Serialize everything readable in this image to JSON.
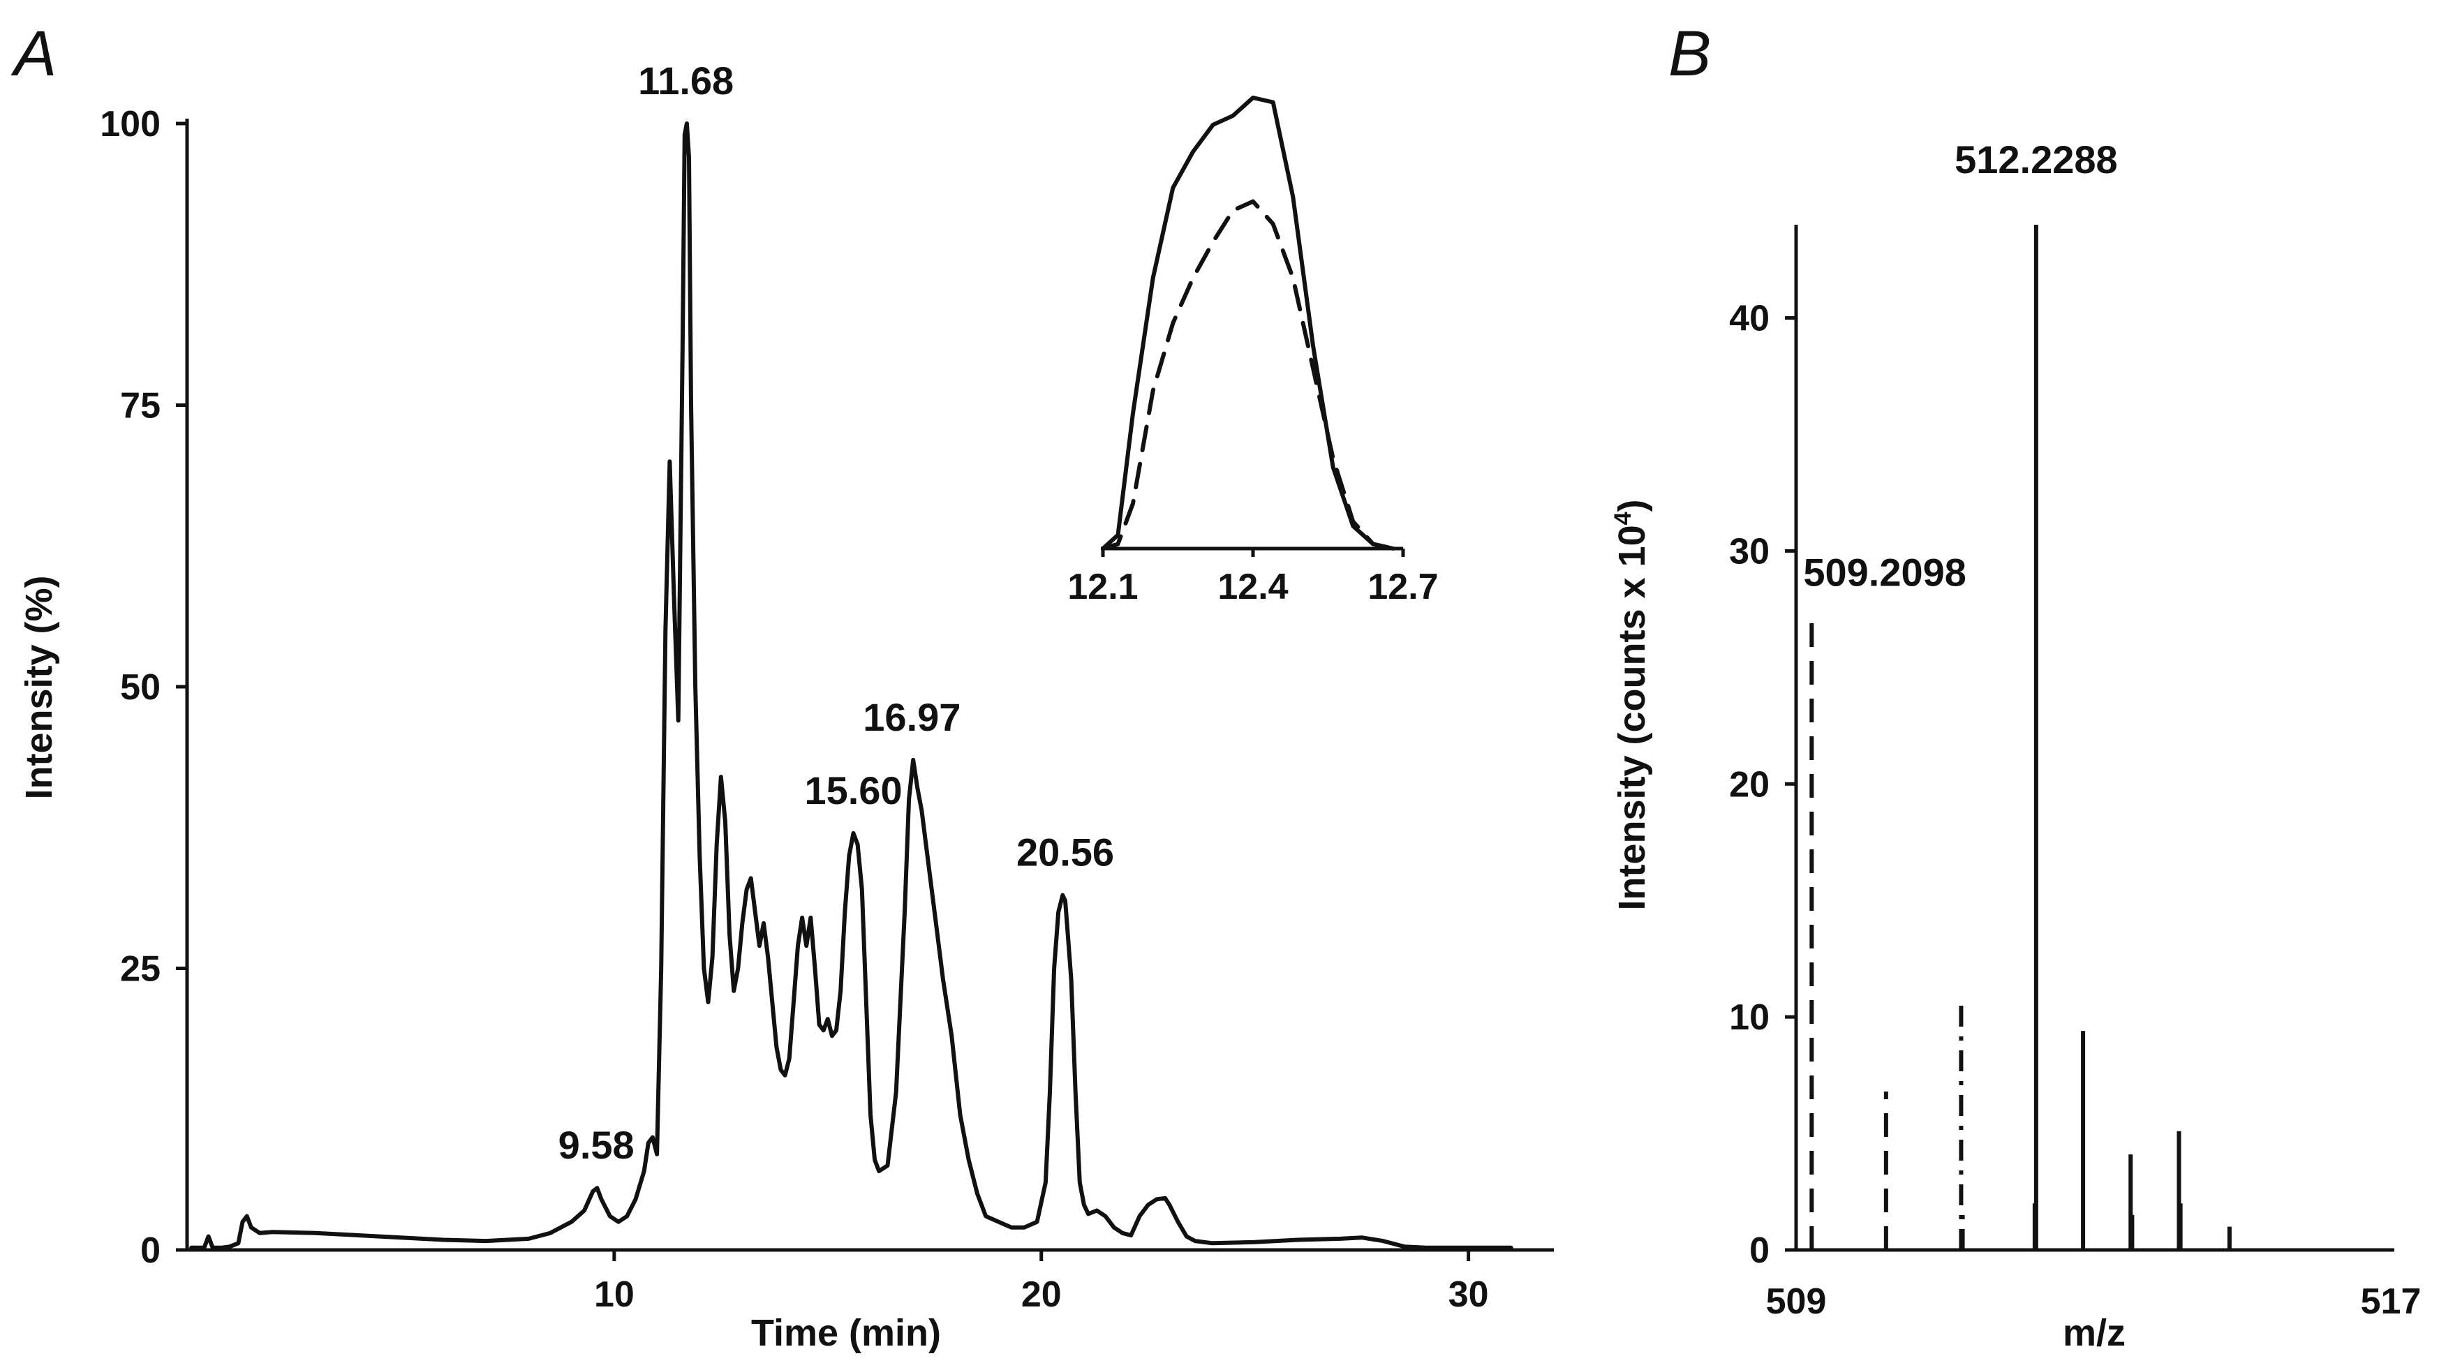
{
  "chart_data": [
    {
      "panel": "A",
      "type": "line",
      "xlabel": "Time (min)",
      "ylabel": "Intensity (%)",
      "xlim": [
        0,
        32
      ],
      "ylim": [
        0,
        100
      ],
      "x_ticks": [
        10,
        20,
        30
      ],
      "y_ticks": [
        0,
        25,
        50,
        75,
        100
      ],
      "x_tick_labels": [
        "10",
        "20",
        "30"
      ],
      "y_tick_labels": [
        "0",
        "25",
        "50",
        "75",
        "100"
      ],
      "peak_labels": [
        {
          "x": 9.58,
          "y": 5.5,
          "text": "9.58"
        },
        {
          "x": 11.68,
          "y": 100,
          "text": "11.68"
        },
        {
          "x": 15.6,
          "y": 37,
          "text": "15.60"
        },
        {
          "x": 16.97,
          "y": 43.5,
          "text": "16.97"
        },
        {
          "x": 20.56,
          "y": 31.5,
          "text": "20.56"
        }
      ],
      "series": [
        {
          "name": "chromatogram",
          "x": [
            0.1,
            0.4,
            0.5,
            0.6,
            0.8,
            1.0,
            1.2,
            1.3,
            1.4,
            1.5,
            1.7,
            2.0,
            3.0,
            4.0,
            5.0,
            6.0,
            7.0,
            8.0,
            8.5,
            9.0,
            9.3,
            9.5,
            9.6,
            9.7,
            9.9,
            10.1,
            10.3,
            10.5,
            10.7,
            10.8,
            10.9,
            11.0,
            11.1,
            11.2,
            11.3,
            11.4,
            11.5,
            11.6,
            11.65,
            11.7,
            11.75,
            11.8,
            11.9,
            12.0,
            12.1,
            12.2,
            12.3,
            12.4,
            12.5,
            12.6,
            12.7,
            12.8,
            12.9,
            13.0,
            13.1,
            13.2,
            13.3,
            13.4,
            13.5,
            13.6,
            13.7,
            13.8,
            13.9,
            14.0,
            14.1,
            14.2,
            14.3,
            14.4,
            14.5,
            14.6,
            14.7,
            14.8,
            14.9,
            15.0,
            15.1,
            15.2,
            15.3,
            15.4,
            15.5,
            15.6,
            15.7,
            15.8,
            15.9,
            16.0,
            16.1,
            16.2,
            16.4,
            16.6,
            16.8,
            16.9,
            17.0,
            17.1,
            17.2,
            17.3,
            17.5,
            17.7,
            17.9,
            18.1,
            18.3,
            18.5,
            18.7,
            19.0,
            19.3,
            19.6,
            19.9,
            20.1,
            20.2,
            20.3,
            20.4,
            20.5,
            20.56,
            20.6,
            20.7,
            20.8,
            20.9,
            21.0,
            21.1,
            21.3,
            21.5,
            21.7,
            21.9,
            22.1,
            22.3,
            22.5,
            22.7,
            22.9,
            23.0,
            23.2,
            23.4,
            23.6,
            24.0,
            25.0,
            26.0,
            27.0,
            27.5,
            28.0,
            28.5,
            29.0,
            30.0,
            31.0
          ],
          "y": [
            0.2,
            0.2,
            1.2,
            0.2,
            0.2,
            0.3,
            0.6,
            2.5,
            3.0,
            2.0,
            1.5,
            1.6,
            1.5,
            1.3,
            1.1,
            0.9,
            0.8,
            1.0,
            1.5,
            2.5,
            3.5,
            5.2,
            5.5,
            4.5,
            3.0,
            2.5,
            3.0,
            4.5,
            7.0,
            9.5,
            10.0,
            8.5,
            25.0,
            55.0,
            70.0,
            58.0,
            47.0,
            80.0,
            99.0,
            100.0,
            97.0,
            75.0,
            50.0,
            35.0,
            25.0,
            22.0,
            26.0,
            36.0,
            42.0,
            38.0,
            28.0,
            23.0,
            25.0,
            29.0,
            32.0,
            33.0,
            30.0,
            27.0,
            29.0,
            26.0,
            22.0,
            18.0,
            16.0,
            15.5,
            17.0,
            22.0,
            27.0,
            29.5,
            27.0,
            29.5,
            25.0,
            20.0,
            19.5,
            20.5,
            19.0,
            19.5,
            23.0,
            30.0,
            35.0,
            37.0,
            36.0,
            32.0,
            22.0,
            12.0,
            8.0,
            7.0,
            7.5,
            14.0,
            30.0,
            40.0,
            43.5,
            41.0,
            39.0,
            36.0,
            30.0,
            24.0,
            19.0,
            12.0,
            8.0,
            5.0,
            3.0,
            2.5,
            2.0,
            2.0,
            2.5,
            6.0,
            14.0,
            25.0,
            30.0,
            31.5,
            31.0,
            29.0,
            24.0,
            14.0,
            6.0,
            4.0,
            3.2,
            3.5,
            3.0,
            2.0,
            1.5,
            1.3,
            3.0,
            4.0,
            4.5,
            4.6,
            4.0,
            2.5,
            1.2,
            0.8,
            0.6,
            0.7,
            0.9,
            1.0,
            1.1,
            0.8,
            0.3,
            0.2,
            0.2,
            0.2
          ]
        }
      ]
    },
    {
      "panel": "A-inset",
      "type": "line",
      "xlabel": "",
      "ylabel": "",
      "xlim": [
        12.1,
        12.7
      ],
      "ylim": [
        0,
        100
      ],
      "x_ticks": [
        12.1,
        12.4,
        12.7
      ],
      "x_tick_labels": [
        "12.1",
        "12.4",
        "12.7"
      ],
      "series": [
        {
          "name": "solid",
          "style": "solid",
          "x": [
            12.1,
            12.13,
            12.16,
            12.2,
            12.24,
            12.28,
            12.32,
            12.36,
            12.4,
            12.44,
            12.48,
            12.52,
            12.56,
            12.6,
            12.64,
            12.68
          ],
          "y": [
            0,
            3,
            30,
            60,
            80,
            88,
            94,
            96,
            100,
            99,
            78,
            45,
            18,
            5,
            1,
            0
          ]
        },
        {
          "name": "dashed",
          "style": "dashed",
          "x": [
            12.1,
            12.13,
            12.16,
            12.2,
            12.24,
            12.28,
            12.32,
            12.36,
            12.4,
            12.44,
            12.48,
            12.52,
            12.56,
            12.6,
            12.64,
            12.68
          ],
          "y": [
            0,
            1,
            10,
            35,
            50,
            60,
            68,
            75,
            77,
            72,
            60,
            40,
            20,
            6,
            1,
            0
          ]
        }
      ]
    },
    {
      "panel": "B",
      "type": "bar",
      "xlabel": "m/z",
      "ylabel": "Intensity (counts x 10",
      "ylabel_exponent": "4",
      "ylabel_suffix": ")",
      "xlim": [
        509,
        517
      ],
      "ylim": [
        0,
        44
      ],
      "x_tick_labels": [
        "509",
        "517"
      ],
      "y_ticks": [
        0,
        10,
        20,
        30,
        40
      ],
      "y_tick_labels": [
        "0",
        "10",
        "20",
        "30",
        "40"
      ],
      "peak_labels": [
        {
          "x": 509.2098,
          "y": 27,
          "text": "509.2098"
        },
        {
          "x": 512.2288,
          "y": 44.5,
          "text": "512.2288"
        }
      ],
      "series": [
        {
          "name": "dashed",
          "style": "dashed",
          "x": [
            509.2098,
            510.21
          ],
          "values": [
            27.0,
            6.8
          ]
        },
        {
          "name": "dash-dot",
          "style": "dashdot",
          "x": [
            511.22,
            511.24
          ],
          "values": [
            10.8,
            1.5
          ]
        },
        {
          "name": "solid",
          "style": "solid",
          "x": [
            512.21,
            512.2288,
            512.86,
            513.5,
            513.52,
            514.15,
            514.17,
            514.83
          ],
          "values": [
            2.0,
            44.0,
            9.4,
            4.1,
            1.5,
            5.1,
            2.0,
            1.0
          ]
        }
      ]
    }
  ]
}
